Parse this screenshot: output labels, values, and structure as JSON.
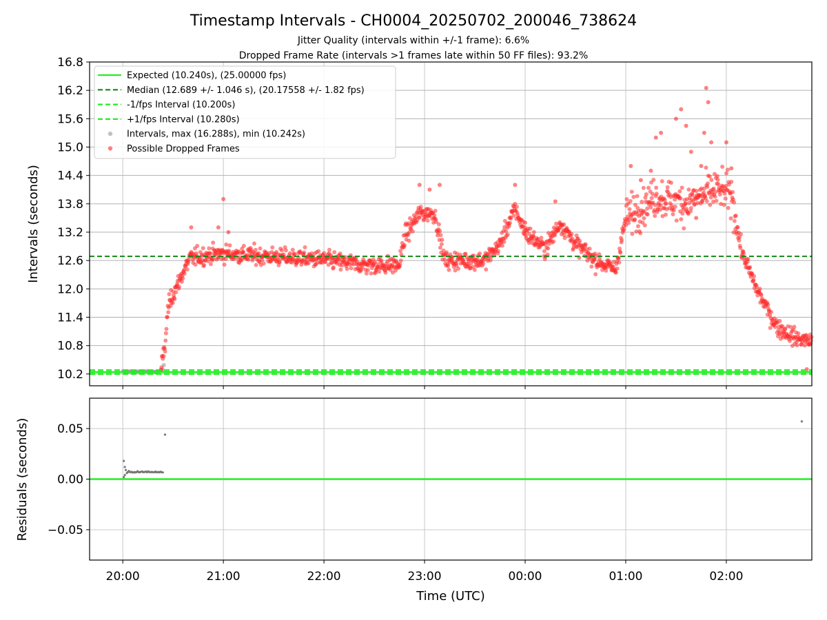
{
  "chart_data": [
    {
      "type": "scatter",
      "title": "Timestamp Intervals - CH0004_20250702_200046_738624",
      "subtitle_lines": [
        "Jitter Quality (intervals within +/-1 frame): 6.6%",
        "Dropped Frame Rate (intervals >1 frames late within 50 FF files): 93.2%"
      ],
      "xlabel": "",
      "ylabel": "Intervals (seconds)",
      "x_ticks": [
        "20:00",
        "21:00",
        "22:00",
        "23:00",
        "00:00",
        "01:00",
        "02:00"
      ],
      "y_ticks": [
        "10.2",
        "10.8",
        "11.4",
        "12.0",
        "12.6",
        "13.2",
        "13.8",
        "14.4",
        "15.0",
        "15.6",
        "16.2",
        "16.8"
      ],
      "xlim_hours_since_20_00": [
        -0.33,
        6.85
      ],
      "ylim": [
        9.95,
        16.8
      ],
      "grid": true,
      "legend_placement": "upper-left",
      "legend": [
        {
          "label": "Expected (10.240s), (25.00000 fps)",
          "style": "solid-line",
          "color": "#22ee22"
        },
        {
          "label": "Median (12.689 +/- 1.046 s), (20.17558 +/- 1.82 fps)",
          "style": "dashed-line",
          "color": "#118811"
        },
        {
          "label": "-1/fps Interval (10.200s)",
          "style": "dashed-line",
          "color": "#22ee22"
        },
        {
          "label": "+1/fps Interval (10.280s)",
          "style": "dashed-line",
          "color": "#22ee22"
        },
        {
          "label": "Intervals, max (16.288s), min (10.242s)",
          "style": "marker",
          "color": "#999999"
        },
        {
          "label": "Possible Dropped Frames",
          "style": "marker",
          "color": "#ff2b2b"
        }
      ],
      "reference_lines": {
        "expected": 10.24,
        "median": 12.689,
        "minus_one_fps": 10.2,
        "plus_one_fps": 10.28
      },
      "series": [
        {
          "name": "Possible Dropped Frames",
          "color": "#ff2b2b",
          "trend_points": [
            [
              0.38,
              10.3
            ],
            [
              0.42,
              10.8
            ],
            [
              0.45,
              11.6
            ],
            [
              0.5,
              11.9
            ],
            [
              0.55,
              12.1
            ],
            [
              0.6,
              12.35
            ],
            [
              0.67,
              12.65
            ],
            [
              0.8,
              12.7
            ],
            [
              1.0,
              12.75
            ],
            [
              1.5,
              12.68
            ],
            [
              2.0,
              12.62
            ],
            [
              2.4,
              12.5
            ],
            [
              2.75,
              12.5
            ],
            [
              2.8,
              13.1
            ],
            [
              2.95,
              13.6
            ],
            [
              3.1,
              13.6
            ],
            [
              3.2,
              12.6
            ],
            [
              3.6,
              12.6
            ],
            [
              3.75,
              12.95
            ],
            [
              3.9,
              13.7
            ],
            [
              4.0,
              13.2
            ],
            [
              4.2,
              12.85
            ],
            [
              4.35,
              13.4
            ],
            [
              4.5,
              12.95
            ],
            [
              4.7,
              12.6
            ],
            [
              4.9,
              12.4
            ],
            [
              5.0,
              13.5
            ],
            [
              5.3,
              13.95
            ],
            [
              5.6,
              13.8
            ],
            [
              5.9,
              14.1
            ],
            [
              6.05,
              14.0
            ],
            [
              6.15,
              12.8
            ],
            [
              6.3,
              12.0
            ],
            [
              6.5,
              11.2
            ],
            [
              6.7,
              10.95
            ],
            [
              6.85,
              10.9
            ]
          ],
          "outliers": [
            [
              0.68,
              13.3
            ],
            [
              0.95,
              13.3
            ],
            [
              1.0,
              13.9
            ],
            [
              1.05,
              13.2
            ],
            [
              2.95,
              14.2
            ],
            [
              3.05,
              14.1
            ],
            [
              3.15,
              14.2
            ],
            [
              3.9,
              14.2
            ],
            [
              4.0,
              13.4
            ],
            [
              4.3,
              13.85
            ],
            [
              5.05,
              14.6
            ],
            [
              5.15,
              14.3
            ],
            [
              5.25,
              14.5
            ],
            [
              5.3,
              15.2
            ],
            [
              5.35,
              15.3
            ],
            [
              5.5,
              15.6
            ],
            [
              5.55,
              15.8
            ],
            [
              5.6,
              15.45
            ],
            [
              5.65,
              14.9
            ],
            [
              5.75,
              14.6
            ],
            [
              5.78,
              15.3
            ],
            [
              5.8,
              16.25
            ],
            [
              5.82,
              15.95
            ],
            [
              5.85,
              15.1
            ],
            [
              6.0,
              15.1
            ],
            [
              6.05,
              14.55
            ],
            [
              5.7,
              13.5
            ],
            [
              6.8,
              10.3
            ]
          ]
        },
        {
          "name": "Intervals, max (16.288s), min (10.242s)",
          "color": "#999999",
          "trend_points": [
            [
              0.0,
              10.25
            ],
            [
              0.35,
              10.25
            ],
            [
              0.4,
              10.3
            ],
            [
              0.42,
              10.5
            ]
          ]
        }
      ]
    },
    {
      "type": "scatter",
      "title": "",
      "xlabel": "Time (UTC)",
      "ylabel": "Residuals (seconds)",
      "x_ticks": [
        "20:00",
        "21:00",
        "22:00",
        "23:00",
        "00:00",
        "01:00",
        "02:00"
      ],
      "y_ticks": [
        "−0.05",
        "0.00",
        "0.05"
      ],
      "ylim": [
        -0.08,
        0.08
      ],
      "grid": true,
      "reference_lines": {
        "zero": 0.0
      },
      "series": [
        {
          "color": "#777777",
          "points": [
            [
              0.01,
              0.018
            ],
            [
              0.01,
              0.002
            ],
            [
              0.02,
              0.012
            ],
            [
              0.02,
              0.004
            ],
            [
              0.03,
              0.009
            ],
            [
              0.04,
              0.006
            ],
            [
              0.06,
              0.008
            ],
            [
              0.09,
              0.007
            ],
            [
              0.12,
              0.007
            ],
            [
              0.16,
              0.007
            ],
            [
              0.2,
              0.007
            ],
            [
              0.24,
              0.007
            ],
            [
              0.28,
              0.007
            ],
            [
              0.32,
              0.007
            ],
            [
              0.35,
              0.007
            ],
            [
              0.38,
              0.007
            ],
            [
              0.42,
              0.044
            ],
            [
              6.75,
              0.057
            ]
          ]
        }
      ]
    }
  ]
}
